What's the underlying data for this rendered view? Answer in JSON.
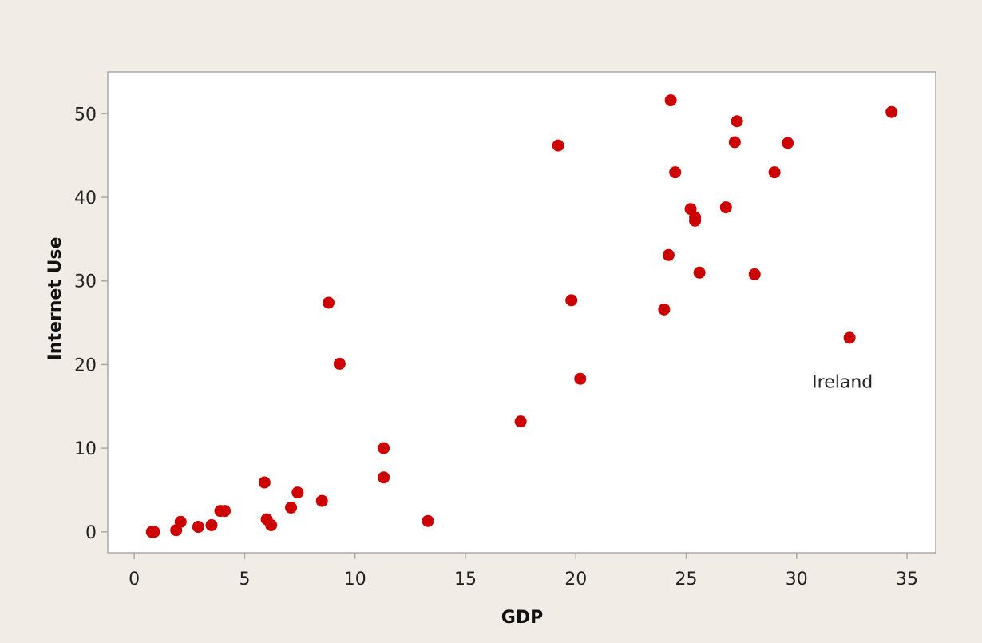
{
  "colors": {
    "page_background": "#f1ede6",
    "plot_background": "#ffffff",
    "frame": "#a9a9a9",
    "point": "#cc0000"
  },
  "chart_data": {
    "type": "scatter",
    "title": "",
    "xlabel": "GDP",
    "ylabel": "Internet Use",
    "xlim": [
      -1.2,
      36.3
    ],
    "ylim": [
      -2.5,
      55
    ],
    "xticks": [
      0,
      5,
      10,
      15,
      20,
      25,
      30,
      35
    ],
    "xtick_labels": [
      "0",
      "5",
      "10",
      "15",
      "20",
      "25",
      "30",
      "35"
    ],
    "yticks": [
      0,
      10,
      20,
      30,
      40,
      50
    ],
    "ytick_labels": [
      "0",
      "10",
      "20",
      "30",
      "40",
      "50"
    ],
    "grid": false,
    "legend": "none",
    "points": [
      {
        "x": 0.8,
        "y": 0.0
      },
      {
        "x": 0.9,
        "y": 0.0
      },
      {
        "x": 1.9,
        "y": 0.2
      },
      {
        "x": 2.1,
        "y": 1.2
      },
      {
        "x": 2.9,
        "y": 0.6
      },
      {
        "x": 3.5,
        "y": 0.8
      },
      {
        "x": 3.9,
        "y": 2.5
      },
      {
        "x": 4.1,
        "y": 2.5
      },
      {
        "x": 5.9,
        "y": 5.9
      },
      {
        "x": 6.0,
        "y": 1.5
      },
      {
        "x": 6.2,
        "y": 0.8
      },
      {
        "x": 7.1,
        "y": 2.9
      },
      {
        "x": 7.4,
        "y": 4.7
      },
      {
        "x": 8.5,
        "y": 3.7
      },
      {
        "x": 8.8,
        "y": 27.4
      },
      {
        "x": 9.3,
        "y": 20.1
      },
      {
        "x": 11.3,
        "y": 10.0
      },
      {
        "x": 11.3,
        "y": 6.5
      },
      {
        "x": 13.3,
        "y": 1.3
      },
      {
        "x": 17.5,
        "y": 13.2
      },
      {
        "x": 19.2,
        "y": 46.2
      },
      {
        "x": 19.8,
        "y": 27.7
      },
      {
        "x": 20.2,
        "y": 18.3
      },
      {
        "x": 24.0,
        "y": 26.6
      },
      {
        "x": 24.2,
        "y": 33.1
      },
      {
        "x": 24.3,
        "y": 51.6
      },
      {
        "x": 24.5,
        "y": 43.0
      },
      {
        "x": 25.2,
        "y": 38.6
      },
      {
        "x": 25.4,
        "y": 37.2
      },
      {
        "x": 25.4,
        "y": 37.6
      },
      {
        "x": 25.6,
        "y": 31.0
      },
      {
        "x": 26.8,
        "y": 38.8
      },
      {
        "x": 27.2,
        "y": 46.6
      },
      {
        "x": 27.3,
        "y": 49.1
      },
      {
        "x": 28.1,
        "y": 30.8
      },
      {
        "x": 29.0,
        "y": 43.0
      },
      {
        "x": 29.6,
        "y": 46.5
      },
      {
        "x": 32.4,
        "y": 23.2
      },
      {
        "x": 34.3,
        "y": 50.2
      }
    ],
    "annotations": [
      {
        "text": "Ireland",
        "x": 30.7,
        "y": 18.0
      }
    ]
  }
}
